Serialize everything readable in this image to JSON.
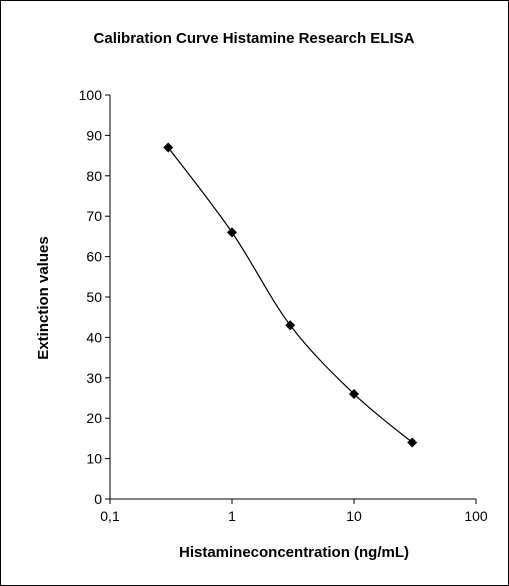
{
  "chart_data": {
    "type": "scatter",
    "title": "Calibration Curve Histamine Research ELISA",
    "xlabel": "Histamineconcentration (ng/mL)",
    "ylabel": "Extinction values",
    "x_scale": "log",
    "xlim": [
      0.1,
      100
    ],
    "ylim": [
      0,
      100
    ],
    "x_ticks": [
      "0,1",
      "1",
      "10",
      "100"
    ],
    "y_ticks": [
      "0",
      "10",
      "20",
      "30",
      "40",
      "50",
      "60",
      "70",
      "80",
      "90",
      "100"
    ],
    "grid": false,
    "legend": "none",
    "series": [
      {
        "marker": "diamond",
        "line": "smooth",
        "x": [
          0.3,
          1,
          3,
          10,
          30
        ],
        "y": [
          87,
          66,
          43,
          26,
          14
        ]
      }
    ]
  }
}
